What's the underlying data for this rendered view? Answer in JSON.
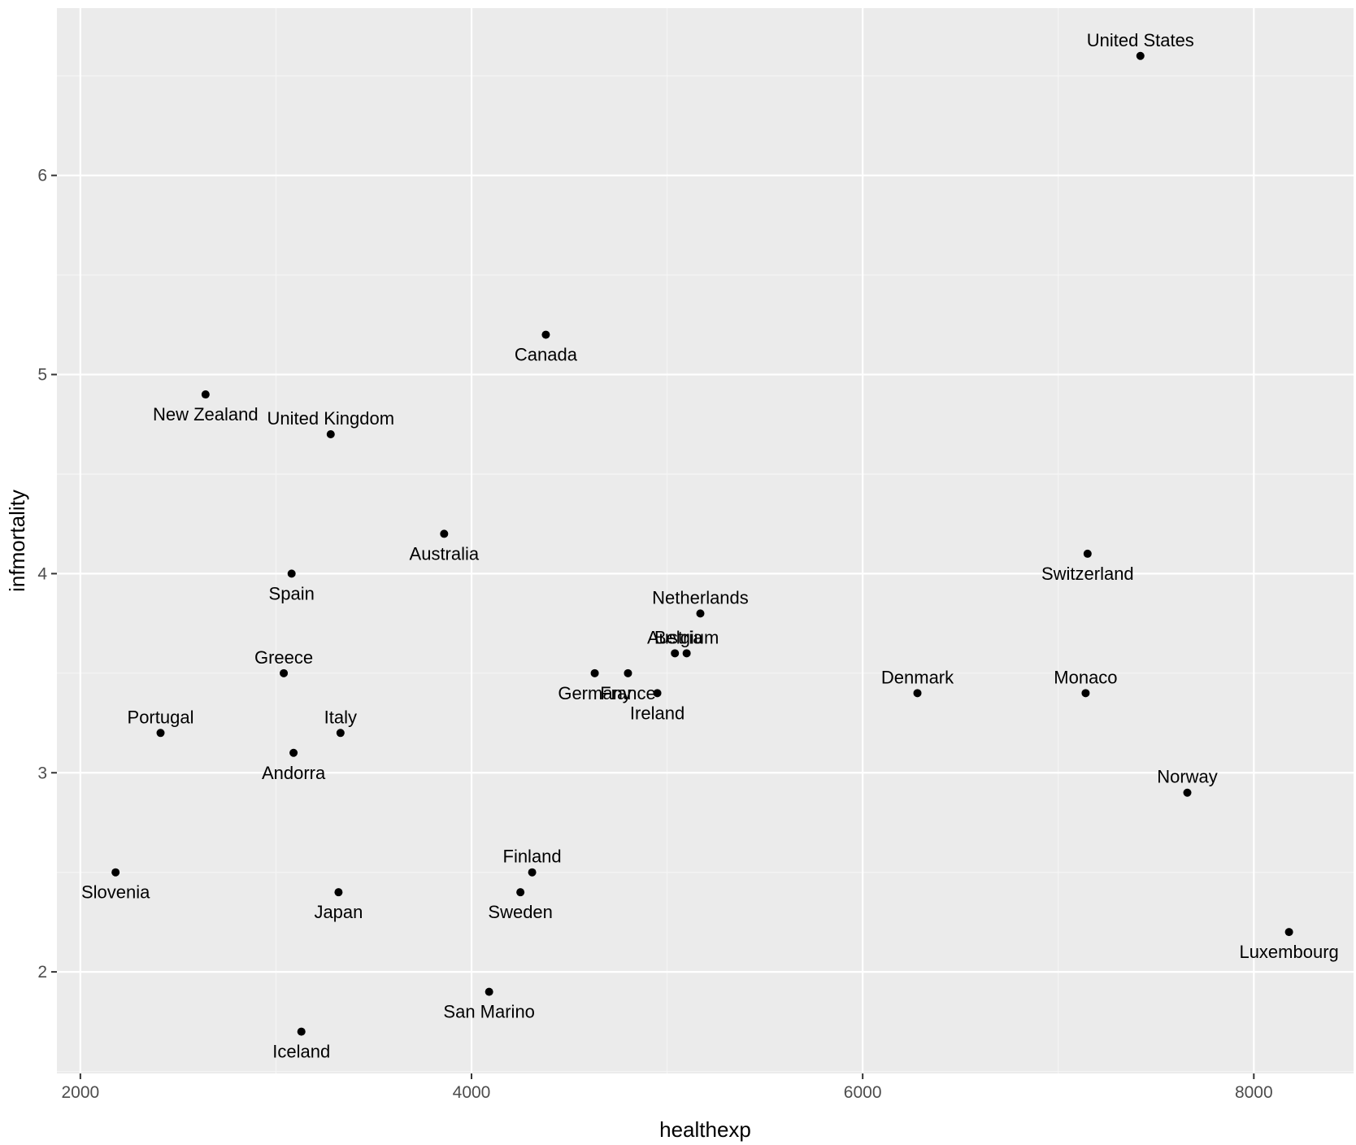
{
  "chart_data": {
    "type": "scatter",
    "title": "",
    "xlabel": "healthexp",
    "ylabel": "infmortality",
    "xlim": [
      1880,
      8510
    ],
    "ylim": [
      1.49,
      6.84
    ],
    "x_ticks": [
      2000,
      4000,
      6000,
      8000
    ],
    "x_tick_labels": [
      "2000",
      "4000",
      "6000",
      "8000"
    ],
    "y_ticks": [
      2,
      3,
      4,
      5,
      6
    ],
    "y_tick_labels": [
      "2",
      "3",
      "4",
      "5",
      "6"
    ],
    "x_minor_grid": [
      3000,
      5000,
      7000
    ],
    "y_minor_grid": [
      1.5,
      2.5,
      3.5,
      4.5,
      5.5,
      6.5
    ],
    "grid": true,
    "legend": "none",
    "colors": {
      "panel_background": "#ebebeb",
      "grid_major": "#ffffff",
      "grid_minor": "#f5f5f5",
      "point": "#000000",
      "tick_label": "#4d4d4d",
      "axis_title": "#000000"
    },
    "points": [
      {
        "label": "United States",
        "x": 7420,
        "y": 6.6,
        "label_pos": "above"
      },
      {
        "label": "Canada",
        "x": 4380,
        "y": 5.2,
        "label_pos": "below"
      },
      {
        "label": "New Zealand",
        "x": 2640,
        "y": 4.9,
        "label_pos": "below"
      },
      {
        "label": "United Kingdom",
        "x": 3280,
        "y": 4.7,
        "label_pos": "above"
      },
      {
        "label": "Australia",
        "x": 3860,
        "y": 4.2,
        "label_pos": "below"
      },
      {
        "label": "Switzerland",
        "x": 7150,
        "y": 4.1,
        "label_pos": "below"
      },
      {
        "label": "Spain",
        "x": 3080,
        "y": 4.0,
        "label_pos": "below"
      },
      {
        "label": "Netherlands",
        "x": 5170,
        "y": 3.8,
        "label_pos": "above"
      },
      {
        "label": "Austria",
        "x": 5040,
        "y": 3.6,
        "label_pos": "above"
      },
      {
        "label": "Belgium",
        "x": 5100,
        "y": 3.6,
        "label_pos": "above"
      },
      {
        "label": "Germany",
        "x": 4630,
        "y": 3.5,
        "label_pos": "below"
      },
      {
        "label": "France",
        "x": 4800,
        "y": 3.5,
        "label_pos": "below"
      },
      {
        "label": "Greece",
        "x": 3040,
        "y": 3.5,
        "label_pos": "above"
      },
      {
        "label": "Ireland",
        "x": 4950,
        "y": 3.4,
        "label_pos": "below"
      },
      {
        "label": "Denmark",
        "x": 6280,
        "y": 3.4,
        "label_pos": "above"
      },
      {
        "label": "Monaco",
        "x": 7140,
        "y": 3.4,
        "label_pos": "above"
      },
      {
        "label": "Portugal",
        "x": 2410,
        "y": 3.2,
        "label_pos": "above"
      },
      {
        "label": "Italy",
        "x": 3330,
        "y": 3.2,
        "label_pos": "above"
      },
      {
        "label": "Andorra",
        "x": 3090,
        "y": 3.1,
        "label_pos": "below"
      },
      {
        "label": "Norway",
        "x": 7660,
        "y": 2.9,
        "label_pos": "above"
      },
      {
        "label": "Slovenia",
        "x": 2180,
        "y": 2.5,
        "label_pos": "below"
      },
      {
        "label": "Finland",
        "x": 4310,
        "y": 2.5,
        "label_pos": "above"
      },
      {
        "label": "Japan",
        "x": 3320,
        "y": 2.4,
        "label_pos": "below"
      },
      {
        "label": "Sweden",
        "x": 4250,
        "y": 2.4,
        "label_pos": "below"
      },
      {
        "label": "Luxembourg",
        "x": 8180,
        "y": 2.2,
        "label_pos": "below"
      },
      {
        "label": "San Marino",
        "x": 4090,
        "y": 1.9,
        "label_pos": "below"
      },
      {
        "label": "Iceland",
        "x": 3130,
        "y": 1.7,
        "label_pos": "below"
      }
    ]
  }
}
